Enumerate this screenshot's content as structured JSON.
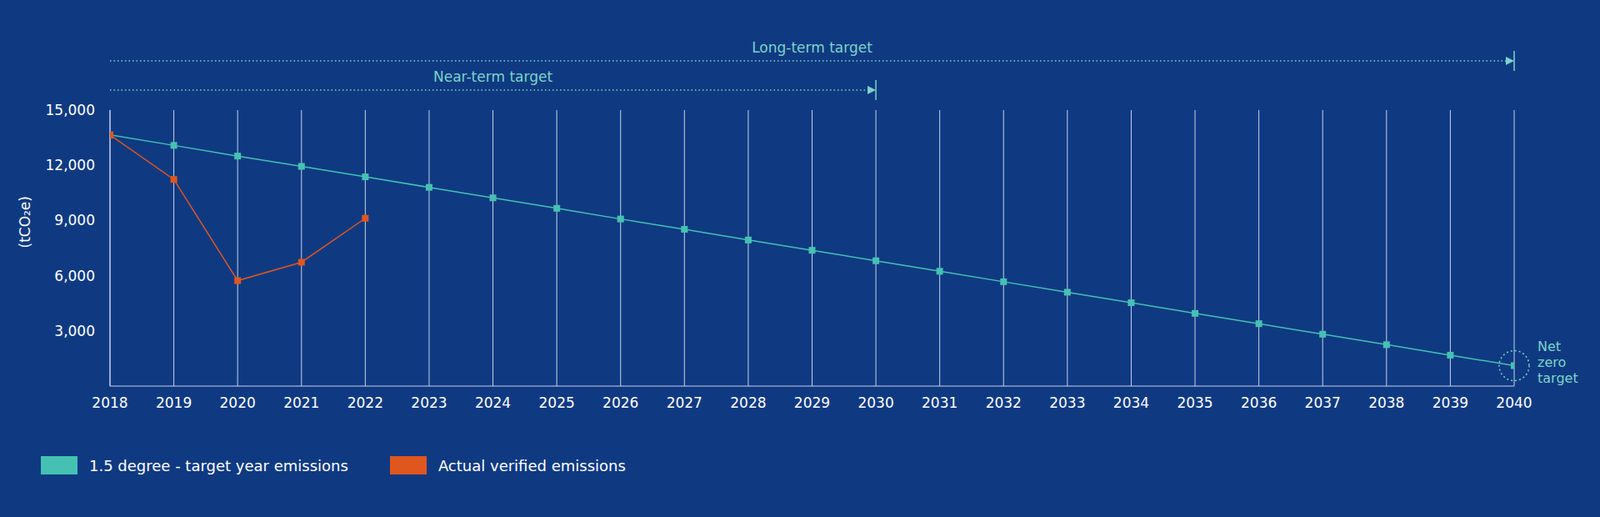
{
  "chart_data": {
    "type": "line",
    "x": [
      2018,
      2019,
      2020,
      2021,
      2022,
      2023,
      2024,
      2025,
      2026,
      2027,
      2028,
      2029,
      2030,
      2031,
      2032,
      2033,
      2034,
      2035,
      2036,
      2037,
      2038,
      2039,
      2040
    ],
    "series": [
      {
        "name": "1.5 degree - target year emissions",
        "color": "#45c1b3",
        "marker": "square",
        "values": [
          13650,
          13080,
          12500,
          11940,
          11370,
          10800,
          10230,
          9660,
          9080,
          8520,
          7940,
          7380,
          6810,
          6240,
          5670,
          5100,
          4530,
          3950,
          3390,
          2820,
          2250,
          1680,
          1110
        ]
      },
      {
        "name": "Actual verified emissions",
        "color": "#e0561f",
        "marker": "square",
        "values": [
          13650,
          11230,
          5730,
          6730,
          9120,
          null,
          null,
          null,
          null,
          null,
          null,
          null,
          null,
          null,
          null,
          null,
          null,
          null,
          null,
          null,
          null,
          null,
          null
        ]
      }
    ],
    "y_label": "(tCO₂e)",
    "xlim": [
      2018,
      2040
    ],
    "xticks": [
      2018,
      2019,
      2020,
      2021,
      2022,
      2023,
      2024,
      2025,
      2026,
      2027,
      2028,
      2029,
      2030,
      2031,
      2032,
      2033,
      2034,
      2035,
      2036,
      2037,
      2038,
      2039,
      2040
    ],
    "ylim": [
      0,
      15000
    ],
    "yticks": [
      {
        "value": 3000,
        "label": "3,000"
      },
      {
        "value": 6000,
        "label": "6,000"
      },
      {
        "value": 9000,
        "label": "9,000"
      },
      {
        "value": 12000,
        "label": "12,000"
      },
      {
        "value": 15000,
        "label": "15,000"
      }
    ],
    "grid": "x",
    "annotations": [
      {
        "text": "Long-term target",
        "x_start": 2018,
        "x_end": 2040
      },
      {
        "text": "Near-term target",
        "x_start": 2018,
        "x_end": 2030
      },
      {
        "text": "Net zero target",
        "x": 2040,
        "y": 1110
      }
    ]
  }
}
